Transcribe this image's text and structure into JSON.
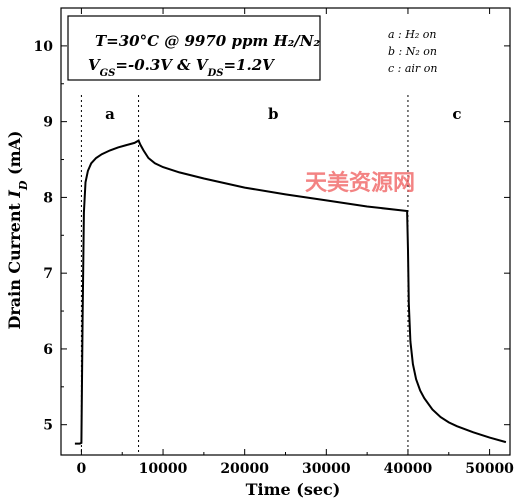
{
  "chart_data": {
    "type": "line",
    "xlabel": "Time (sec)",
    "ylabel_prefix": "Drain Current ",
    "ylabel_var": "I",
    "ylabel_sub": "D",
    "ylabel_unit": " (mA)",
    "xlim": [
      -2500,
      52500
    ],
    "ylim": [
      4.6,
      10.5
    ],
    "x_ticks": [
      0,
      10000,
      20000,
      30000,
      40000,
      50000
    ],
    "y_ticks": [
      5,
      6,
      7,
      8,
      9,
      10
    ],
    "grid": false,
    "phase_dividers": [
      0,
      7000,
      40000
    ],
    "phase_labels": [
      {
        "text": "a",
        "x": 3500
      },
      {
        "text": "b",
        "x": 23500
      },
      {
        "text": "c",
        "x": 46000
      }
    ],
    "annotation": {
      "line1": "T=30°C @ 9970 ppm H₂/N₂",
      "line2": "V<sub>GS</sub>=-0.3V & V<sub>DS</sub>=1.2V"
    },
    "legend_notes": [
      "a : H₂ on",
      "b : N₂ on",
      "c : air on"
    ],
    "series": [
      {
        "x": [
          -800,
          -200,
          0,
          150,
          300,
          500,
          800,
          1200,
          1800,
          2500,
          3500,
          4500,
          5500,
          6500,
          7000,
          7200,
          7600,
          8200,
          9000,
          10000,
          12000,
          15000,
          20000,
          25000,
          30000,
          35000,
          39900,
          40000,
          40100,
          40300,
          40600,
          41000,
          41500,
          42000,
          43000,
          44000,
          45000,
          46000,
          48000,
          50000,
          52000
        ],
        "y": [
          4.75,
          4.75,
          4.76,
          6.4,
          7.8,
          8.2,
          8.35,
          8.45,
          8.52,
          8.57,
          8.62,
          8.66,
          8.69,
          8.72,
          8.75,
          8.7,
          8.62,
          8.52,
          8.45,
          8.4,
          8.33,
          8.25,
          8.13,
          8.04,
          7.96,
          7.88,
          7.82,
          7.3,
          6.6,
          6.1,
          5.8,
          5.6,
          5.45,
          5.35,
          5.2,
          5.1,
          5.03,
          4.98,
          4.9,
          4.83,
          4.77
        ]
      }
    ]
  },
  "watermark": "天美资源网"
}
